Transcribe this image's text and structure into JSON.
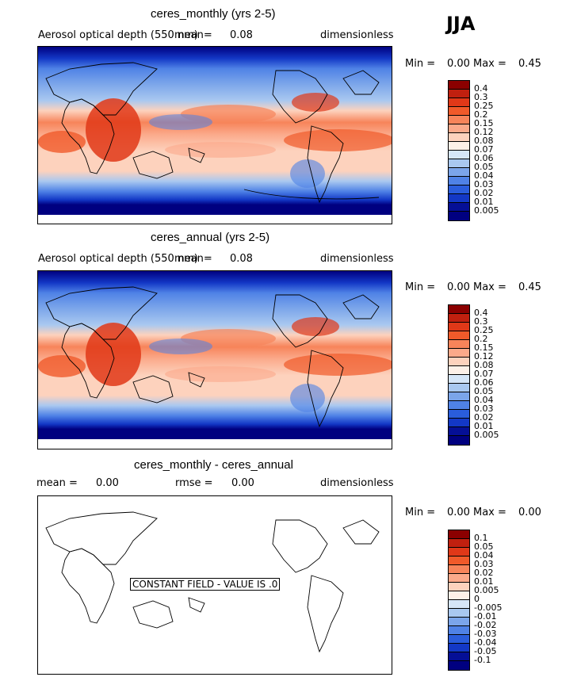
{
  "season": "JJA",
  "panels": [
    {
      "title": "ceres_monthly (yrs 2-5)",
      "variable": "Aerosol optical depth (550 nm)",
      "mean_label": "mean=",
      "mean_value": "0.08",
      "units": "dimensionless",
      "min_label": "Min =",
      "min_value": "0.00",
      "max_label": "Max =",
      "max_value": "0.45"
    },
    {
      "title": "ceres_annual (yrs 2-5)",
      "variable": "Aerosol optical depth (550 nm)",
      "mean_label": "mean=",
      "mean_value": "0.08",
      "units": "dimensionless",
      "min_label": "Min =",
      "min_value": "0.00",
      "max_label": "Max =",
      "max_value": "0.45"
    },
    {
      "title": "ceres_monthly - ceres_annual",
      "mean_label": "mean =",
      "mean_value": "0.00",
      "rmse_label": "rmse =",
      "rmse_value": "0.00",
      "units": "dimensionless",
      "min_label": "Min =",
      "min_value": "0.00",
      "max_label": "Max =",
      "max_value": "0.00",
      "constant_field_text": "CONSTANT FIELD - VALUE IS .0"
    }
  ],
  "colorbar_levels": [
    "0.4",
    "0.3",
    "0.25",
    "0.2",
    "0.15",
    "0.12",
    "0.08",
    "0.07",
    "0.06",
    "0.05",
    "0.04",
    "0.03",
    "0.02",
    "0.01",
    "0.005"
  ],
  "diff_colorbar_levels": [
    "0.1",
    "0.05",
    "0.04",
    "0.03",
    "0.02",
    "0.01",
    "0.005",
    "0",
    "-0.005",
    "-0.01",
    "-0.02",
    "-0.03",
    "-0.04",
    "-0.05",
    "-0.1"
  ],
  "colorbar_colors": [
    "#8b0000",
    "#c0200f",
    "#e03818",
    "#f05a2a",
    "#f7845a",
    "#fba98a",
    "#fdd2bd",
    "#fdf0e8",
    "#d6e6f8",
    "#a9c8f0",
    "#7ba5ea",
    "#4f82e6",
    "#2a5ddc",
    "#1338c6",
    "#050f96",
    "#000080"
  ]
}
